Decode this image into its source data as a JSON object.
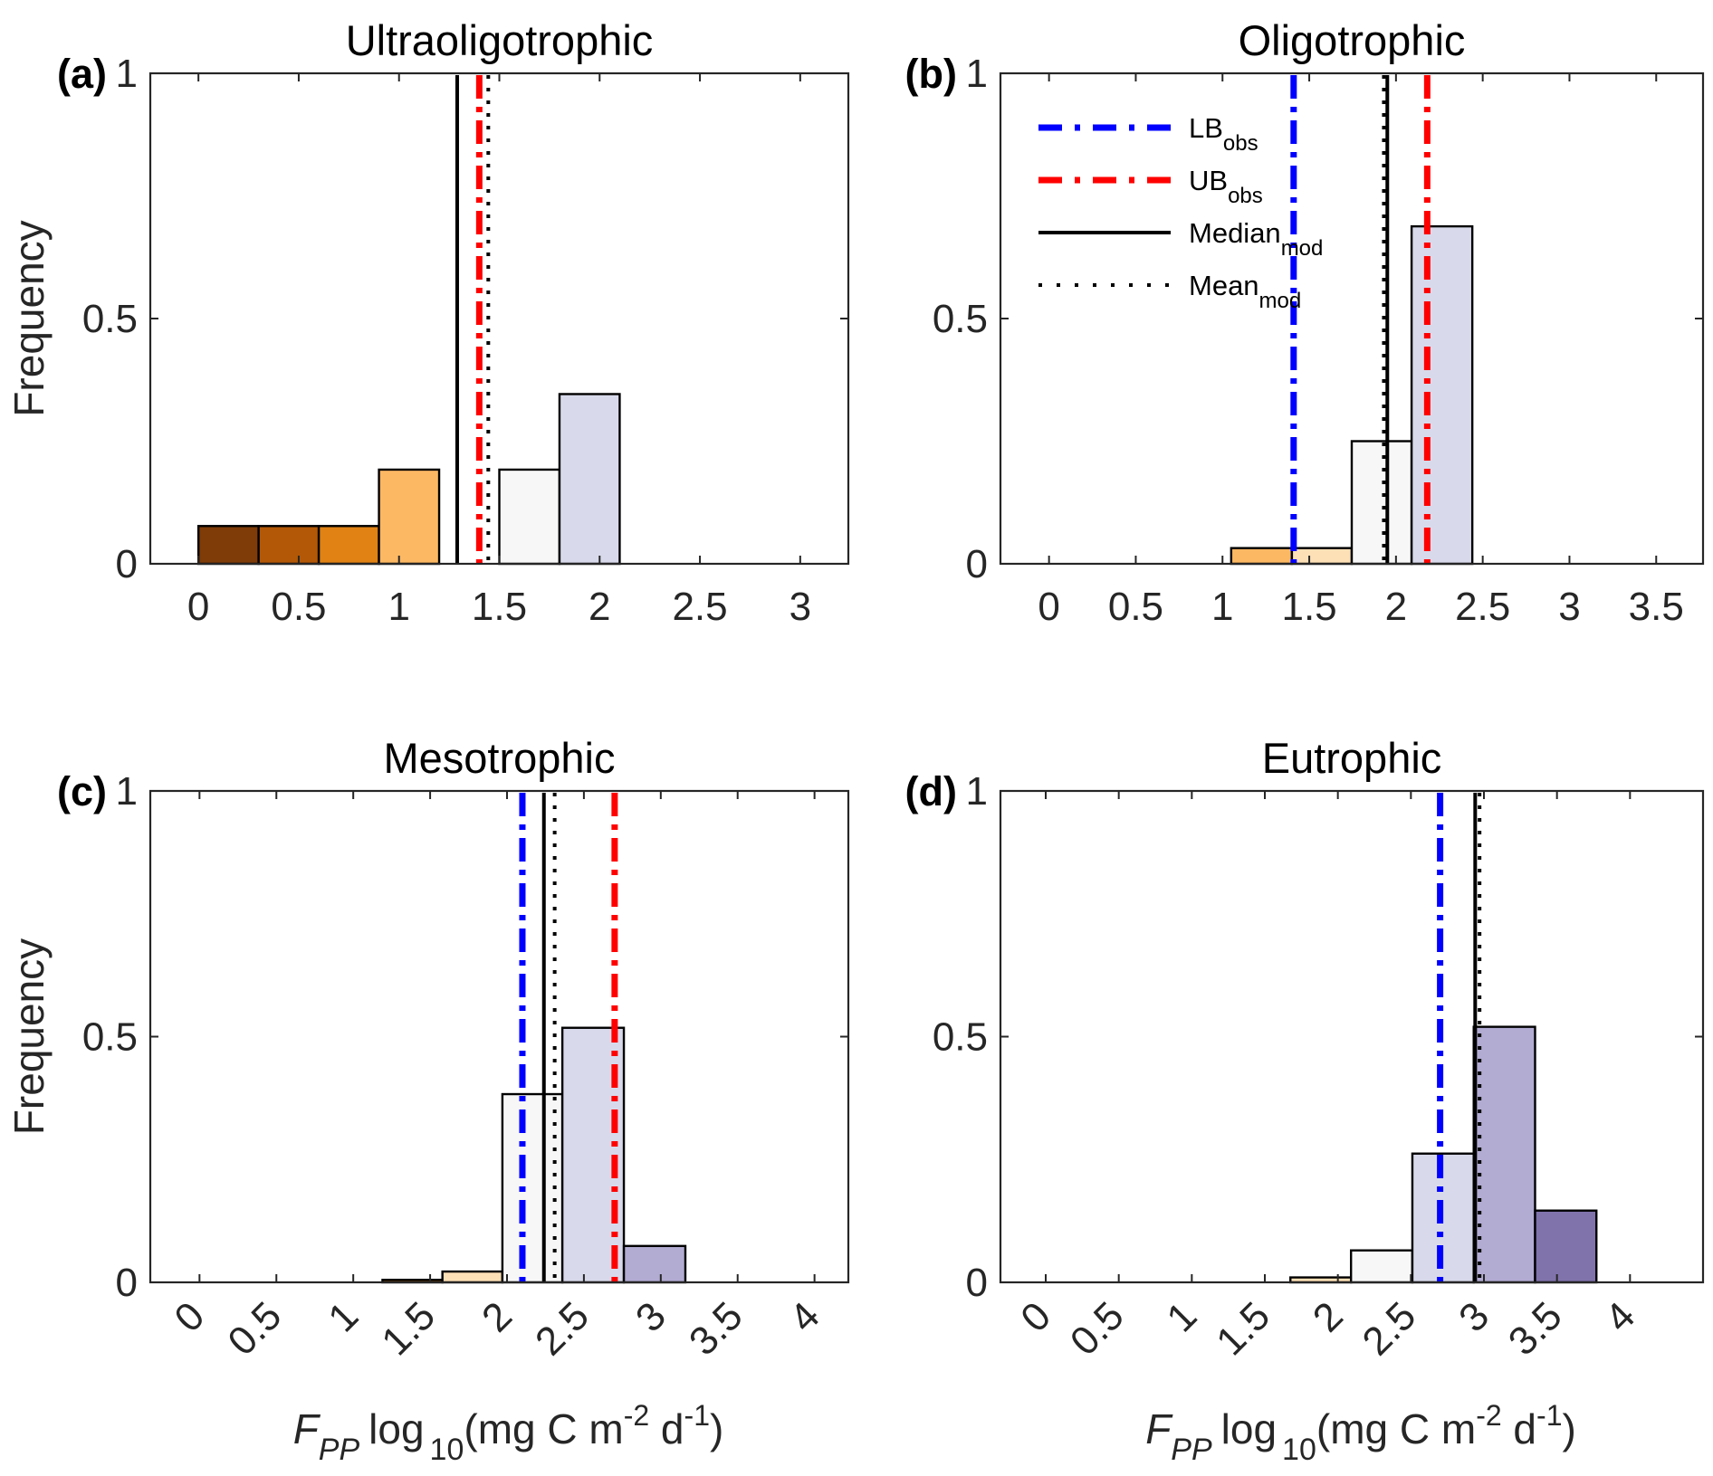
{
  "chart_data": [
    {
      "type": "bar",
      "panel_label": "(a)",
      "title": "Ultraoligotrophic",
      "xlabel": "",
      "ylabel": "Frequency",
      "xlim": [
        -0.24,
        3.24
      ],
      "ylim": [
        0,
        1
      ],
      "xticks": [
        0,
        0.5,
        1,
        1.5,
        2,
        2.5,
        3
      ],
      "xtick_labels": [
        "0",
        "0.5",
        "1",
        "1.5",
        "2",
        "2.5",
        "3"
      ],
      "xtick_rotation": 0,
      "yticks": [
        0,
        0.5,
        1
      ],
      "ytick_labels": [
        "0",
        "0.5",
        "1"
      ],
      "bins": [
        {
          "x0": 0.0,
          "x1": 0.3,
          "value": 0.077,
          "color": "#7F3B08"
        },
        {
          "x0": 0.3,
          "x1": 0.6,
          "value": 0.077,
          "color": "#B35806"
        },
        {
          "x0": 0.6,
          "x1": 0.9,
          "value": 0.077,
          "color": "#E08214"
        },
        {
          "x0": 0.9,
          "x1": 1.2,
          "value": 0.192,
          "color": "#FDB863"
        },
        {
          "x0": 1.5,
          "x1": 1.8,
          "value": 0.192,
          "color": "#F7F7F7"
        },
        {
          "x0": 1.8,
          "x1": 2.1,
          "value": 0.346,
          "color": "#D8DAEB"
        }
      ],
      "vlines": [
        {
          "name": "Median_mod",
          "x": 1.29,
          "style": "solid",
          "color": "#000000"
        },
        {
          "name": "UB_obs",
          "x": 1.4,
          "style": "dashdot",
          "color": "#FF0000"
        },
        {
          "name": "Mean_mod",
          "x": 1.445,
          "style": "dotted",
          "color": "#000000"
        }
      ],
      "legend": null
    },
    {
      "type": "bar",
      "panel_label": "(b)",
      "title": "Oligotrophic",
      "xlabel": "",
      "ylabel": "",
      "xlim": [
        -0.28,
        3.77
      ],
      "ylim": [
        0,
        1
      ],
      "xticks": [
        0,
        0.5,
        1,
        1.5,
        2,
        2.5,
        3,
        3.5
      ],
      "xtick_labels": [
        "0",
        "0.5",
        "1",
        "1.5",
        "2",
        "2.5",
        "3",
        "3.5"
      ],
      "xtick_rotation": 0,
      "yticks": [
        0,
        0.5,
        1
      ],
      "ytick_labels": [
        "0",
        "0.5",
        "1"
      ],
      "bins": [
        {
          "x0": 1.05,
          "x1": 1.4,
          "value": 0.032,
          "color": "#FDB863"
        },
        {
          "x0": 1.4,
          "x1": 1.745,
          "value": 0.032,
          "color": "#FEE0B6"
        },
        {
          "x0": 1.745,
          "x1": 2.09,
          "value": 0.25,
          "color": "#F7F7F7"
        },
        {
          "x0": 2.09,
          "x1": 2.44,
          "value": 0.688,
          "color": "#D8DAEB"
        }
      ],
      "vlines": [
        {
          "name": "LB_obs",
          "x": 1.41,
          "style": "dashdot",
          "color": "#0000FF"
        },
        {
          "name": "Mean_mod",
          "x": 1.93,
          "style": "dotted",
          "color": "#000000"
        },
        {
          "name": "Median_mod",
          "x": 1.95,
          "style": "solid",
          "color": "#000000"
        },
        {
          "name": "UB_obs",
          "x": 2.18,
          "style": "dashdot",
          "color": "#FF0000"
        }
      ],
      "legend": {
        "placement": "top-left",
        "entries": [
          {
            "main": "LB",
            "sub": "obs",
            "style": "dashdot",
            "color": "#0000FF"
          },
          {
            "main": "UB",
            "sub": "obs",
            "style": "dashdot",
            "color": "#FF0000"
          },
          {
            "main": "Median",
            "sub": "mod",
            "style": "solid",
            "color": "#000000"
          },
          {
            "main": "Mean",
            "sub": "mod",
            "style": "dotted",
            "color": "#000000"
          }
        ]
      }
    },
    {
      "type": "bar",
      "panel_label": "(c)",
      "title": "Mesotrophic",
      "xlabel": "F_PP log10(mg C m^-2 d^-1)",
      "ylabel": "Frequency",
      "xlim": [
        -0.32,
        4.22
      ],
      "ylim": [
        0,
        1
      ],
      "xticks": [
        0,
        0.5,
        1,
        1.5,
        2,
        2.5,
        3,
        3.5,
        4
      ],
      "xtick_labels": [
        "0",
        "0.5",
        "1",
        "1.5",
        "2",
        "2.5",
        "3",
        "3.5",
        "4"
      ],
      "xtick_rotation": 45,
      "yticks": [
        0,
        0.5,
        1
      ],
      "ytick_labels": [
        "0",
        "0.5",
        "1"
      ],
      "bins": [
        {
          "x0": 1.19,
          "x1": 1.58,
          "value": 0.005,
          "color": "#E08214"
        },
        {
          "x0": 1.58,
          "x1": 1.97,
          "value": 0.022,
          "color": "#FEE0B6"
        },
        {
          "x0": 1.97,
          "x1": 2.36,
          "value": 0.383,
          "color": "#F7F7F7"
        },
        {
          "x0": 2.36,
          "x1": 2.76,
          "value": 0.518,
          "color": "#D8DAEB"
        },
        {
          "x0": 2.76,
          "x1": 3.16,
          "value": 0.074,
          "color": "#B2ABD2"
        }
      ],
      "vlines": [
        {
          "name": "LB_obs",
          "x": 2.1,
          "style": "dashdot",
          "color": "#0000FF"
        },
        {
          "name": "Median_mod",
          "x": 2.24,
          "style": "solid",
          "color": "#000000"
        },
        {
          "name": "Mean_mod",
          "x": 2.31,
          "style": "dotted",
          "color": "#000000"
        },
        {
          "name": "UB_obs",
          "x": 2.7,
          "style": "dashdot",
          "color": "#FF0000"
        }
      ],
      "legend": null
    },
    {
      "type": "bar",
      "panel_label": "(d)",
      "title": "Eutrophic",
      "xlabel": "F_PP log10(mg C m^-2 d^-1)",
      "ylabel": "",
      "xlim": [
        -0.31,
        4.5
      ],
      "ylim": [
        0,
        1
      ],
      "xticks": [
        0,
        0.5,
        1,
        1.5,
        2,
        2.5,
        3,
        3.5,
        4
      ],
      "xtick_labels": [
        "0",
        "0.5",
        "1",
        "1.5",
        "2",
        "2.5",
        "3",
        "3.5",
        "4"
      ],
      "xtick_rotation": 45,
      "yticks": [
        0,
        0.5,
        1
      ],
      "ytick_labels": [
        "0",
        "0.5",
        "1"
      ],
      "bins": [
        {
          "x0": 1.675,
          "x1": 2.09,
          "value": 0.01,
          "color": "#FEE0B6"
        },
        {
          "x0": 2.09,
          "x1": 2.51,
          "value": 0.065,
          "color": "#F7F7F7"
        },
        {
          "x0": 2.51,
          "x1": 2.93,
          "value": 0.262,
          "color": "#D8DAEB"
        },
        {
          "x0": 2.93,
          "x1": 3.35,
          "value": 0.52,
          "color": "#B2ABD2"
        },
        {
          "x0": 3.35,
          "x1": 3.77,
          "value": 0.146,
          "color": "#8073AC"
        }
      ],
      "vlines": [
        {
          "name": "LB_obs",
          "x": 2.7,
          "style": "dashdot",
          "color": "#0000FF"
        },
        {
          "name": "Median_mod",
          "x": 2.94,
          "style": "solid",
          "color": "#000000"
        },
        {
          "name": "Mean_mod",
          "x": 2.97,
          "style": "dotted",
          "color": "#000000"
        }
      ],
      "legend": null
    }
  ],
  "axis_label_parts": {
    "f": "F",
    "pp": "PP",
    "log": "log",
    "ten": "10",
    "unit_open": "(mg C m",
    "exp_m": "-2",
    "unit_mid": " d",
    "exp_d": "-1",
    "unit_close": ")"
  }
}
